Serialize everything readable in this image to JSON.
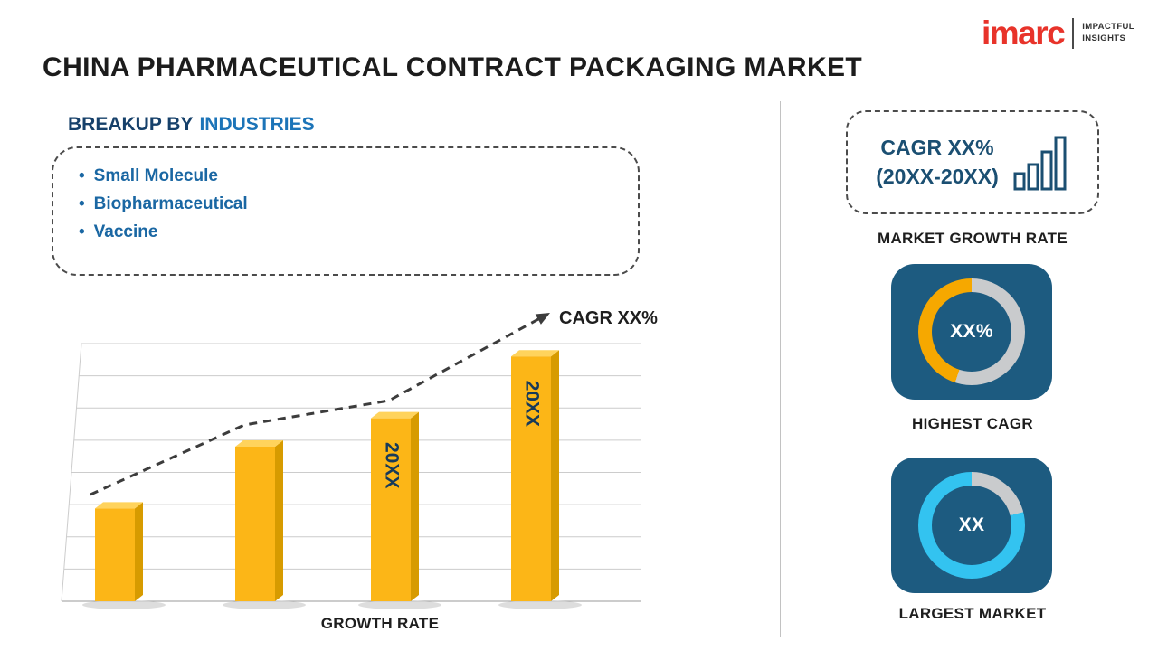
{
  "brand": {
    "logo_text": "imarc",
    "tagline_line1": "IMPACTFUL",
    "tagline_line2": "INSIGHTS",
    "logo_color": "#e8332a"
  },
  "header": {
    "title": "CHINA PHARMACEUTICAL CONTRACT PACKAGING MARKET"
  },
  "breakup": {
    "heading_prefix": "BREAKUP BY",
    "heading_highlight": "INDUSTRIES",
    "items": [
      "Small Molecule",
      "Biopharmaceutical",
      "Vaccine"
    ]
  },
  "chart_data": {
    "type": "bar",
    "title": "GROWTH RATE",
    "xlabel": "GROWTH RATE",
    "ylabel": "",
    "ylim": [
      0,
      10
    ],
    "grid": true,
    "categories": [
      "",
      "",
      "20XX",
      "20XX"
    ],
    "values": [
      3.6,
      6.0,
      7.1,
      9.5
    ],
    "bar_labels": [
      "",
      "",
      "20XX",
      "20XX"
    ],
    "trend_label": "CAGR XX%",
    "trend_direction": "increasing",
    "bar_color": "#fcb617",
    "bar_side_color": "#d79b00",
    "bar_top_color": "#ffd35c",
    "bar_label_color": "#173a5a",
    "trend_color": "#3c3c3c"
  },
  "sidebar": {
    "cagr_box": {
      "line1": "CAGR XX%",
      "line2": "(20XX-20XX)"
    },
    "market_growth_label": "MARKET GROWTH RATE",
    "highest_cagr": {
      "value": "XX%",
      "label": "HIGHEST CAGR",
      "ring": {
        "track_color": "#c9cbcd",
        "fill_color": "#f6a800",
        "fill_percent": 45
      }
    },
    "largest_market": {
      "value": "XX",
      "label": "LARGEST MARKET",
      "ring": {
        "track_color": "#c9cbcd",
        "fill_color": "#33c3f0",
        "fill_percent": 79
      }
    },
    "tile_color": "#1d5b80"
  }
}
